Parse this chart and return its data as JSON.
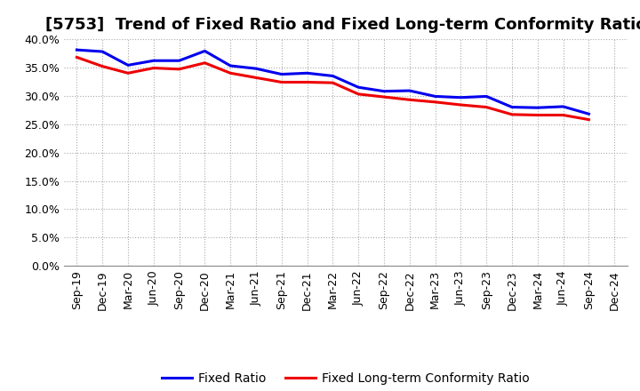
{
  "title": "[5753]  Trend of Fixed Ratio and Fixed Long-term Conformity Ratio",
  "x_labels": [
    "Sep-19",
    "Dec-19",
    "Mar-20",
    "Jun-20",
    "Sep-20",
    "Dec-20",
    "Mar-21",
    "Jun-21",
    "Sep-21",
    "Dec-21",
    "Mar-22",
    "Jun-22",
    "Sep-22",
    "Dec-22",
    "Mar-23",
    "Jun-23",
    "Sep-23",
    "Dec-23",
    "Mar-24",
    "Jun-24",
    "Sep-24",
    "Dec-24"
  ],
  "fixed_ratio": [
    0.381,
    0.378,
    0.354,
    0.362,
    0.362,
    0.379,
    0.353,
    0.348,
    0.338,
    0.34,
    0.335,
    0.315,
    0.308,
    0.309,
    0.299,
    0.297,
    0.299,
    0.28,
    0.279,
    0.281,
    0.268,
    null
  ],
  "fixed_lt_ratio": [
    0.368,
    0.352,
    0.34,
    0.349,
    0.347,
    0.358,
    0.34,
    0.332,
    0.324,
    0.324,
    0.323,
    0.303,
    0.298,
    0.293,
    0.289,
    0.284,
    0.28,
    0.267,
    0.266,
    0.266,
    0.258,
    null
  ],
  "fixed_ratio_color": "#0000ee",
  "fixed_lt_ratio_color": "#ee0000",
  "ylim": [
    0.0,
    0.4
  ],
  "yticks": [
    0.0,
    0.05,
    0.1,
    0.15,
    0.2,
    0.25,
    0.3,
    0.35,
    0.4
  ],
  "grid_color": "#aaaaaa",
  "background_color": "#ffffff",
  "plot_bg_color": "#ffffff",
  "line_width": 2.2,
  "legend_fixed_ratio": "Fixed Ratio",
  "legend_fixed_lt_ratio": "Fixed Long-term Conformity Ratio",
  "title_fontsize": 13,
  "tick_fontsize": 9,
  "legend_fontsize": 10
}
